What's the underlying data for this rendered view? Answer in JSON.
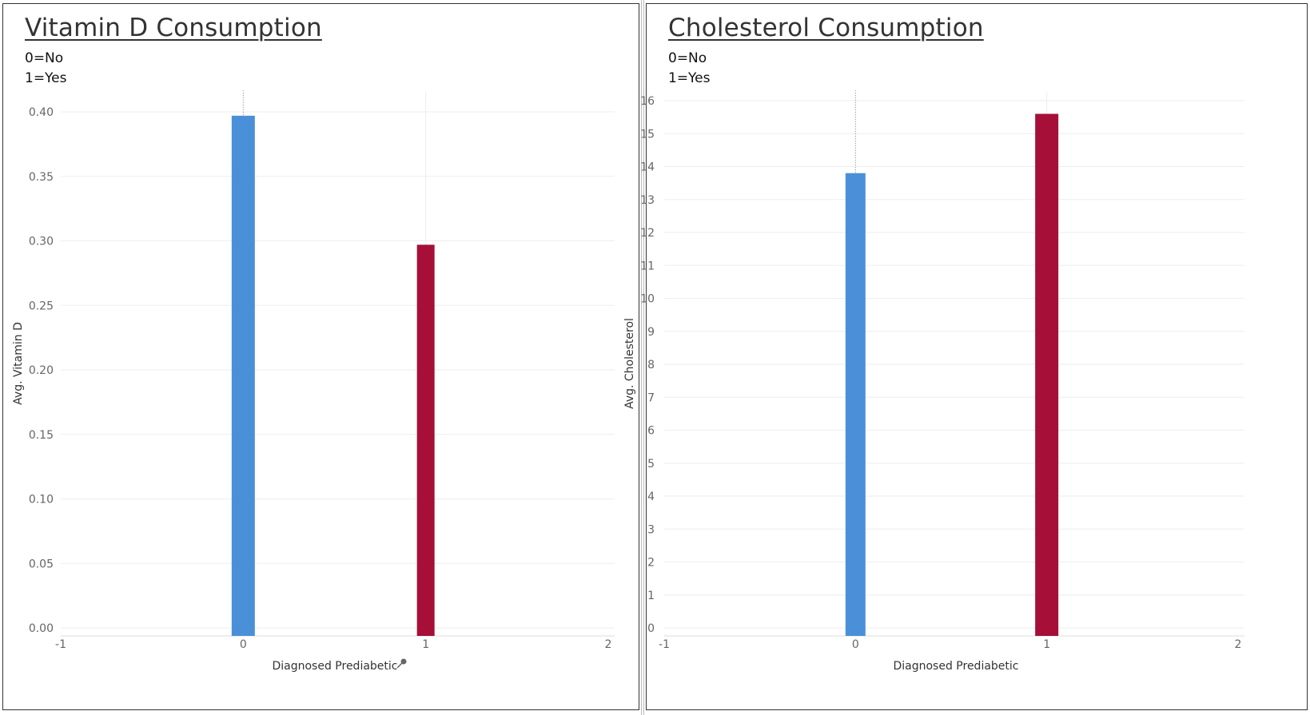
{
  "panels": [
    {
      "title": "Vitamin D Consumption",
      "legend": [
        "0=No",
        "1=Yes"
      ]
    },
    {
      "title": "Cholesterol Consumption",
      "legend": [
        "0=No",
        "1=Yes"
      ]
    }
  ],
  "colors": {
    "no": "#4a90d9",
    "yes": "#a50f38",
    "axis_text": "#666666",
    "grid": "#eeeeee"
  },
  "icons": {
    "pin": "pin-icon"
  },
  "chart_data": [
    {
      "type": "bar",
      "title": "Vitamin D Consumption",
      "xlabel": "Diagnosed Prediabetic",
      "ylabel": "Avg. Vitamin D",
      "x": [
        0,
        1
      ],
      "values": [
        0.397,
        0.297
      ],
      "colors": [
        "#4a90d9",
        "#a50f38"
      ],
      "xlim": [
        -1,
        2
      ],
      "xticks": [
        -1,
        0,
        1,
        2
      ],
      "ylim": [
        0,
        0.4
      ],
      "yticks": [
        0,
        0.05,
        0.1,
        0.15,
        0.2,
        0.25,
        0.3,
        0.35,
        0.4
      ],
      "ytick_labels": [
        "0.00",
        "0.05",
        "0.10",
        "0.15",
        "0.20",
        "0.25",
        "0.30",
        "0.35",
        "0.40"
      ],
      "grid": true
    },
    {
      "type": "bar",
      "title": "Cholesterol Consumption",
      "xlabel": "Diagnosed Prediabetic",
      "ylabel": "Avg. Cholesterol",
      "x": [
        0,
        1
      ],
      "values": [
        13.8,
        15.6
      ],
      "colors": [
        "#4a90d9",
        "#a50f38"
      ],
      "xlim": [
        -1,
        2
      ],
      "xticks": [
        -1,
        0,
        1,
        2
      ],
      "ylim": [
        0,
        16
      ],
      "yticks": [
        0,
        1,
        2,
        3,
        4,
        5,
        6,
        7,
        8,
        9,
        10,
        11,
        12,
        13,
        14,
        15,
        16
      ],
      "ytick_labels": [
        "0",
        "1",
        "2",
        "3",
        "4",
        "5",
        "6",
        "7",
        "8",
        "9",
        "10",
        "11",
        "12",
        "13",
        "14",
        "15",
        "16"
      ],
      "grid": true
    }
  ]
}
